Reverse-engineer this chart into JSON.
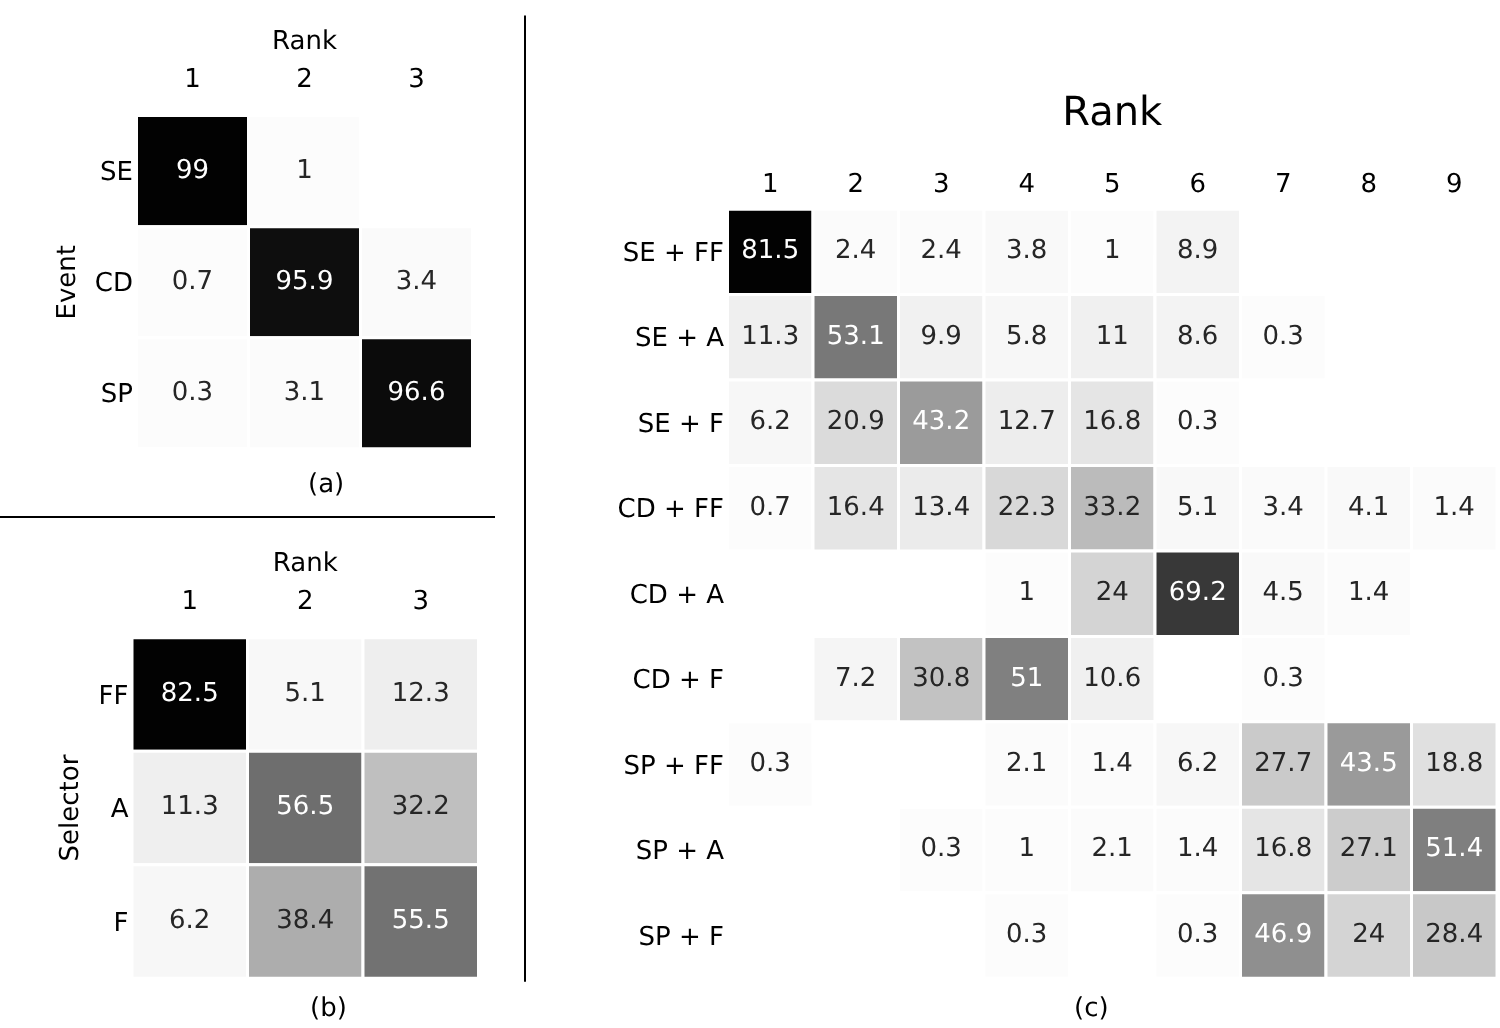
{
  "chart_data": [
    {
      "type": "heatmap",
      "xlabel": "Rank",
      "ylabel": "Event",
      "categories": [
        "1",
        "2",
        "3"
      ],
      "y_categories": [
        "SE",
        "CD",
        "SP"
      ],
      "data_labels": true,
      "annotations": [
        "(a)"
      ],
      "cells": [
        [
          99,
          1,
          null
        ],
        [
          0.7,
          95.9,
          3.4
        ],
        [
          0.3,
          3.1,
          96.6
        ]
      ]
    },
    {
      "type": "heatmap",
      "xlabel": "Rank",
      "ylabel": "Selector",
      "categories": [
        "1",
        "2",
        "3"
      ],
      "y_categories": [
        "FF",
        "A",
        "F"
      ],
      "data_labels": true,
      "annotations": [
        "(b)"
      ],
      "cells": [
        [
          82.5,
          5.1,
          12.3
        ],
        [
          11.3,
          56.5,
          32.2
        ],
        [
          6.2,
          38.4,
          55.5
        ]
      ]
    },
    {
      "type": "heatmap",
      "xlabel": "Rank",
      "categories": [
        "1",
        "2",
        "3",
        "4",
        "5",
        "6",
        "7",
        "8",
        "9"
      ],
      "y_categories": [
        "SE + FF",
        "SE + A",
        "SE + F",
        "CD + FF",
        "CD + A",
        "CD + F",
        "SP + FF",
        "SP + A",
        "SP + F"
      ],
      "data_labels": true,
      "annotations": [
        "(c)"
      ],
      "cells": [
        [
          81.5,
          2.4,
          2.4,
          3.8,
          1,
          8.9,
          null,
          null,
          null
        ],
        [
          11.3,
          53.1,
          9.9,
          5.8,
          11,
          8.6,
          0.3,
          null,
          null
        ],
        [
          6.2,
          20.9,
          43.2,
          12.7,
          16.8,
          0.3,
          null,
          null,
          null
        ],
        [
          0.7,
          16.4,
          13.4,
          22.3,
          33.2,
          5.1,
          3.4,
          4.1,
          1.4
        ],
        [
          null,
          null,
          null,
          1,
          24,
          69.2,
          4.5,
          1.4,
          null
        ],
        [
          null,
          7.2,
          30.8,
          51,
          10.6,
          null,
          0.3,
          null,
          null
        ],
        [
          0.3,
          null,
          null,
          2.1,
          1.4,
          6.2,
          27.7,
          43.5,
          18.8
        ],
        [
          null,
          null,
          0.3,
          1,
          2.1,
          1.4,
          16.8,
          27.1,
          51.4
        ],
        [
          null,
          null,
          null,
          0.3,
          null,
          0.3,
          46.9,
          24,
          28.4
        ]
      ]
    }
  ]
}
